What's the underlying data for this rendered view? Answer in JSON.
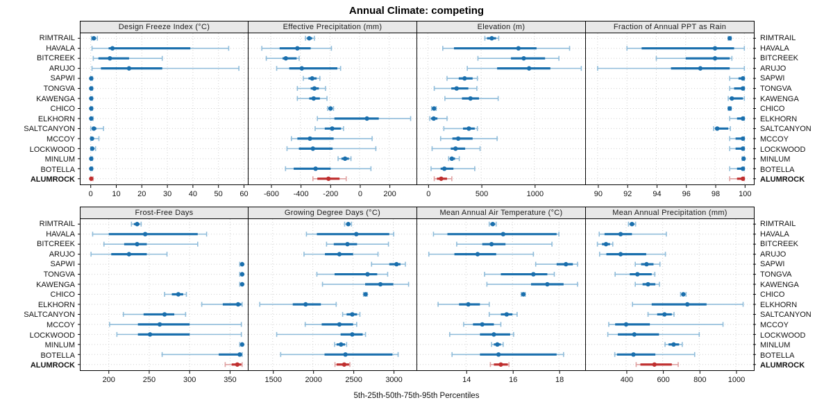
{
  "title": "Annual Climate: competing",
  "footer": "5th-25th-50th-75th-95th Percentiles",
  "highlight_site": "ALUMROCK",
  "sites": [
    "RIMTRAIL",
    "HAVALA",
    "BITCREEK",
    "ARUJO",
    "SAPWI",
    "TONGVA",
    "KAWENGA",
    "CHICO",
    "ELKHORN",
    "SALTCANYON",
    "MCCOY",
    "LOCKWOOD",
    "MINLUM",
    "BOTELLA",
    "ALUMROCK"
  ],
  "colors": {
    "series": "#1a6fad",
    "series_light": "#8fbcda",
    "highlight": "#bf2f2f",
    "highlight_light": "#dfa0a0",
    "grid": "#cfcfcf",
    "header_bg": "#e8e8e8",
    "border": "#000000"
  },
  "chart_data": {
    "type": "dotplot-percentiles",
    "percentiles": [
      5,
      25,
      50,
      75,
      95
    ],
    "legend_note": "5th-25th-50th-75th-95th Percentiles",
    "panels": [
      {
        "title": "Design Freeze Index (°C)",
        "row": "top",
        "ticks": [
          0,
          10,
          20,
          30,
          40,
          50,
          60
        ],
        "domain": [
          -4,
          61.5
        ],
        "values": [
          [
            0.3,
            0.8,
            1.2,
            2,
            2.6
          ],
          [
            0.5,
            7,
            8.5,
            39,
            54
          ],
          [
            1,
            3,
            7.5,
            15,
            28
          ],
          [
            0.5,
            4,
            15,
            28,
            58
          ],
          [
            0,
            0,
            0.2,
            0.4,
            0.7
          ],
          [
            0,
            0,
            0.2,
            0.4,
            0.7
          ],
          [
            0,
            0,
            0.2,
            0.4,
            0.7
          ],
          [
            0,
            0,
            0.2,
            0.4,
            0.7
          ],
          [
            0,
            0,
            0.2,
            0.5,
            0.9
          ],
          [
            0,
            0.5,
            1.2,
            2.2,
            5
          ],
          [
            0,
            0.2,
            0.5,
            1.2,
            3.2
          ],
          [
            0,
            0.2,
            0.6,
            1.1,
            1.9
          ],
          [
            0,
            0,
            0.2,
            0.4,
            0.7
          ],
          [
            0,
            0,
            0.2,
            0.4,
            0.7
          ],
          [
            0,
            0,
            0.2,
            0.5,
            0.9
          ]
        ]
      },
      {
        "title": "Effective Precipitation (mm)",
        "row": "top",
        "ticks": [
          -600,
          -400,
          -200,
          0,
          200
        ],
        "domain": [
          -750,
          380
        ],
        "values": [
          [
            -365,
            -355,
            -340,
            -320,
            -305
          ],
          [
            -660,
            -540,
            -420,
            -330,
            -190
          ],
          [
            -630,
            -520,
            -498,
            -425,
            -408
          ],
          [
            -560,
            -475,
            -390,
            -150,
            -128
          ],
          [
            -380,
            -345,
            -320,
            -290,
            -268
          ],
          [
            -420,
            -330,
            -305,
            -275,
            -230
          ],
          [
            -420,
            -340,
            -310,
            -268,
            -220
          ],
          [
            -215,
            -205,
            -196,
            -186,
            -176
          ],
          [
            -285,
            -170,
            50,
            130,
            345
          ],
          [
            -300,
            -235,
            -185,
            -125,
            -108
          ],
          [
            -460,
            -420,
            -335,
            -175,
            85
          ],
          [
            -490,
            -410,
            -315,
            -182,
            110
          ],
          [
            -145,
            -122,
            -98,
            -72,
            -58
          ],
          [
            -500,
            -445,
            -297,
            -195,
            77
          ],
          [
            -315,
            -285,
            -210,
            -135,
            -90
          ]
        ]
      },
      {
        "title": "Elevation (m)",
        "row": "top",
        "ticks": [
          0,
          500,
          1000
        ],
        "domain": [
          -100,
          1470
        ],
        "values": [
          [
            535,
            555,
            600,
            640,
            665
          ],
          [
            140,
            245,
            850,
            1020,
            1330
          ],
          [
            470,
            780,
            900,
            1100,
            1230
          ],
          [
            370,
            650,
            950,
            1150,
            1440
          ],
          [
            180,
            290,
            345,
            420,
            465
          ],
          [
            60,
            220,
            270,
            380,
            460
          ],
          [
            160,
            320,
            400,
            480,
            660
          ],
          [
            35,
            48,
            58,
            68,
            78
          ],
          [
            18,
            30,
            55,
            90,
            180
          ],
          [
            150,
            330,
            385,
            440,
            465
          ],
          [
            120,
            230,
            285,
            420,
            650
          ],
          [
            40,
            215,
            260,
            350,
            490
          ],
          [
            195,
            210,
            225,
            255,
            295
          ],
          [
            30,
            120,
            155,
            240,
            440
          ],
          [
            60,
            85,
            125,
            180,
            225
          ]
        ]
      },
      {
        "title": "Fraction of Annual PPT as Rain",
        "row": "top",
        "ticks": [
          90,
          92,
          94,
          96,
          98,
          100
        ],
        "domain": [
          89.2,
          100.6
        ],
        "values": [
          [
            98.9,
            98.95,
            99,
            99.05,
            99.1
          ],
          [
            92,
            93,
            98,
            99.3,
            100
          ],
          [
            94,
            96,
            98,
            99,
            99.15
          ],
          [
            90,
            95,
            97,
            99,
            100
          ],
          [
            99,
            99.6,
            99.9,
            100,
            100
          ],
          [
            99,
            99.3,
            99.9,
            100,
            100
          ],
          [
            98.9,
            99,
            99.15,
            99.9,
            100
          ],
          [
            98.9,
            98.95,
            99,
            99.05,
            99.1
          ],
          [
            99,
            99.5,
            99.9,
            100,
            100
          ],
          [
            97.9,
            98,
            98.15,
            98.9,
            99.05
          ],
          [
            99,
            99.4,
            99.9,
            100,
            100
          ],
          [
            99,
            99.4,
            99.9,
            100,
            100
          ],
          [
            99.85,
            99.9,
            99.95,
            100,
            100
          ],
          [
            99,
            99.5,
            99.9,
            100,
            100
          ],
          [
            99,
            99.5,
            99.9,
            100,
            100
          ]
        ]
      },
      {
        "title": "Frost-Free Days",
        "row": "bottom",
        "ticks": [
          200,
          250,
          300,
          350
        ],
        "domain": [
          165,
          372
        ],
        "values": [
          [
            228,
            231,
            235,
            238,
            240
          ],
          [
            180,
            200,
            245,
            310,
            321
          ],
          [
            194,
            219,
            235,
            247,
            310
          ],
          [
            178,
            203,
            225,
            247,
            272
          ],
          [
            362,
            364,
            365,
            365,
            365
          ],
          [
            362,
            364,
            365,
            365,
            365
          ],
          [
            362,
            364,
            365,
            365,
            365
          ],
          [
            269,
            278,
            286,
            292,
            296
          ],
          [
            315,
            341,
            360,
            364,
            365
          ],
          [
            218,
            243,
            269,
            281,
            295
          ],
          [
            201,
            236,
            263,
            300,
            364
          ],
          [
            210,
            236,
            251,
            300,
            364
          ],
          [
            362,
            364,
            365,
            365,
            365
          ],
          [
            266,
            336,
            362,
            365,
            365
          ],
          [
            344,
            352,
            359,
            364,
            365
          ]
        ]
      },
      {
        "title": "Growing Degree Days (°C)",
        "row": "bottom",
        "ticks": [
          1500,
          2000,
          2500,
          3000
        ],
        "domain": [
          1200,
          3280
        ],
        "values": [
          [
            2395,
            2415,
            2440,
            2465,
            2480
          ],
          [
            1920,
            2050,
            2540,
            2950,
            3005
          ],
          [
            2170,
            2260,
            2430,
            2550,
            2940
          ],
          [
            1890,
            2150,
            2330,
            2500,
            2810
          ],
          [
            2730,
            2950,
            3040,
            3090,
            3150
          ],
          [
            2050,
            2270,
            2680,
            2800,
            2930
          ],
          [
            2120,
            2650,
            2840,
            3000,
            3190
          ],
          [
            2630,
            2645,
            2655,
            2665,
            2675
          ],
          [
            1340,
            1750,
            1910,
            2100,
            2290
          ],
          [
            2370,
            2420,
            2490,
            2550,
            2585
          ],
          [
            1905,
            2110,
            2330,
            2500,
            2545
          ],
          [
            1550,
            2345,
            2490,
            2620,
            2655
          ],
          [
            2270,
            2295,
            2350,
            2400,
            2420
          ],
          [
            1600,
            2145,
            2405,
            2990,
            3060
          ],
          [
            2275,
            2295,
            2390,
            2450,
            2460
          ]
        ]
      },
      {
        "title": "Mean Annual Air Temperature (°C)",
        "row": "bottom",
        "ticks": [
          14,
          16,
          18
        ],
        "domain": [
          11.9,
          19.1
        ],
        "values": [
          [
            15.0,
            15.05,
            15.15,
            15.25,
            15.3
          ],
          [
            12.6,
            13.2,
            15.6,
            17.9,
            18.0
          ],
          [
            13.6,
            14.7,
            15.1,
            15.7,
            17.7
          ],
          [
            12.4,
            13.5,
            14.5,
            15.3,
            16.9
          ],
          [
            17.0,
            17.9,
            18.3,
            18.6,
            18.8
          ],
          [
            14.8,
            15.5,
            16.9,
            17.5,
            17.8
          ],
          [
            14.9,
            16.8,
            17.5,
            18.2,
            18.8
          ],
          [
            16.38,
            16.42,
            16.47,
            16.52,
            16.55
          ],
          [
            12.8,
            13.7,
            14.1,
            14.6,
            15.0
          ],
          [
            15.0,
            15.5,
            15.75,
            16.0,
            16.2
          ],
          [
            13.9,
            14.3,
            14.7,
            15.2,
            15.5
          ],
          [
            13.3,
            14.6,
            15.2,
            15.9,
            16.05
          ],
          [
            15.1,
            15.2,
            15.35,
            15.5,
            15.6
          ],
          [
            13.4,
            14.6,
            15.4,
            17.9,
            18.2
          ],
          [
            15.05,
            15.2,
            15.5,
            15.8,
            15.85
          ]
        ]
      },
      {
        "title": "Mean Annual Precipitation (mm)",
        "row": "bottom",
        "ticks": [
          400,
          600,
          800,
          1000
        ],
        "domain": [
          180,
          1095
        ],
        "values": [
          [
            413,
            420,
            432,
            445,
            452
          ],
          [
            253,
            282,
            370,
            432,
            620
          ],
          [
            243,
            268,
            290,
            312,
            327
          ],
          [
            255,
            292,
            370,
            510,
            615
          ],
          [
            450,
            482,
            512,
            550,
            585
          ],
          [
            340,
            420,
            462,
            540,
            557
          ],
          [
            450,
            490,
            520,
            560,
            582
          ],
          [
            698,
            706,
            713,
            722,
            728
          ],
          [
            435,
            540,
            735,
            840,
            1040
          ],
          [
            520,
            570,
            610,
            650,
            662
          ],
          [
            305,
            340,
            400,
            530,
            930
          ],
          [
            300,
            355,
            445,
            580,
            800
          ],
          [
            613,
            632,
            660,
            690,
            707
          ],
          [
            338,
            350,
            440,
            560,
            775
          ],
          [
            455,
            478,
            555,
            650,
            685
          ]
        ]
      }
    ]
  }
}
